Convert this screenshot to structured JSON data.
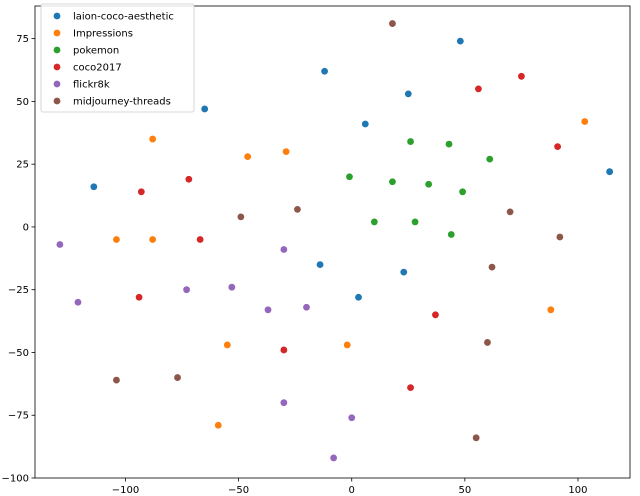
{
  "chart_data": {
    "type": "scatter",
    "title": "",
    "xlabel": "",
    "ylabel": "",
    "xlim": [
      -140,
      123
    ],
    "ylim": [
      -100,
      88
    ],
    "x_ticks": [
      -100,
      -50,
      0,
      50,
      100
    ],
    "y_ticks": [
      -100,
      -75,
      -50,
      -25,
      0,
      25,
      50,
      75
    ],
    "grid": false,
    "legend_position": "top-left",
    "series": [
      {
        "name": "laion-coco-aesthetic",
        "color": "#1f77b4",
        "points": [
          {
            "x": 48,
            "y": 74
          },
          {
            "x": -12,
            "y": 62
          },
          {
            "x": 25,
            "y": 53
          },
          {
            "x": -65,
            "y": 47
          },
          {
            "x": 6,
            "y": 41
          },
          {
            "x": -114,
            "y": 16
          },
          {
            "x": 114,
            "y": 22
          },
          {
            "x": -14,
            "y": -15
          },
          {
            "x": 23,
            "y": -18
          },
          {
            "x": 3,
            "y": -28
          }
        ]
      },
      {
        "name": "Impressions",
        "color": "#ff7f0e",
        "points": [
          {
            "x": 103,
            "y": 42
          },
          {
            "x": -88,
            "y": 35
          },
          {
            "x": -29,
            "y": 30
          },
          {
            "x": -46,
            "y": 28
          },
          {
            "x": -104,
            "y": -5
          },
          {
            "x": -88,
            "y": -5
          },
          {
            "x": 88,
            "y": -33
          },
          {
            "x": -55,
            "y": -47
          },
          {
            "x": -2,
            "y": -47
          },
          {
            "x": -59,
            "y": -79
          }
        ]
      },
      {
        "name": "pokemon",
        "color": "#2ca02c",
        "points": [
          {
            "x": 26,
            "y": 34
          },
          {
            "x": 43,
            "y": 33
          },
          {
            "x": 61,
            "y": 27
          },
          {
            "x": -1,
            "y": 20
          },
          {
            "x": 18,
            "y": 18
          },
          {
            "x": 34,
            "y": 17
          },
          {
            "x": 49,
            "y": 14
          },
          {
            "x": 10,
            "y": 2
          },
          {
            "x": 28,
            "y": 2
          },
          {
            "x": 44,
            "y": -3
          }
        ]
      },
      {
        "name": "coco2017",
        "color": "#d62728",
        "points": [
          {
            "x": 75,
            "y": 60
          },
          {
            "x": 56,
            "y": 55
          },
          {
            "x": 91,
            "y": 32
          },
          {
            "x": -93,
            "y": 14
          },
          {
            "x": -72,
            "y": 19
          },
          {
            "x": -67,
            "y": -5
          },
          {
            "x": -94,
            "y": -28
          },
          {
            "x": 37,
            "y": -35
          },
          {
            "x": -30,
            "y": -49
          },
          {
            "x": 26,
            "y": -64
          }
        ]
      },
      {
        "name": "flickr8k",
        "color": "#9467bd",
        "points": [
          {
            "x": -129,
            "y": -7
          },
          {
            "x": -30,
            "y": -9
          },
          {
            "x": -121,
            "y": -30
          },
          {
            "x": -73,
            "y": -25
          },
          {
            "x": -53,
            "y": -24
          },
          {
            "x": -37,
            "y": -33
          },
          {
            "x": -20,
            "y": -32
          },
          {
            "x": -30,
            "y": -70
          },
          {
            "x": 0,
            "y": -76
          },
          {
            "x": -8,
            "y": -92
          }
        ]
      },
      {
        "name": "midjourney-threads",
        "color": "#8c564b",
        "points": [
          {
            "x": 18,
            "y": 81
          },
          {
            "x": -24,
            "y": 7
          },
          {
            "x": -49,
            "y": 4
          },
          {
            "x": 70,
            "y": 6
          },
          {
            "x": 92,
            "y": -4
          },
          {
            "x": 62,
            "y": -16
          },
          {
            "x": 60,
            "y": -46
          },
          {
            "x": -104,
            "y": -61
          },
          {
            "x": -77,
            "y": -60
          },
          {
            "x": 55,
            "y": -84
          }
        ]
      }
    ]
  }
}
